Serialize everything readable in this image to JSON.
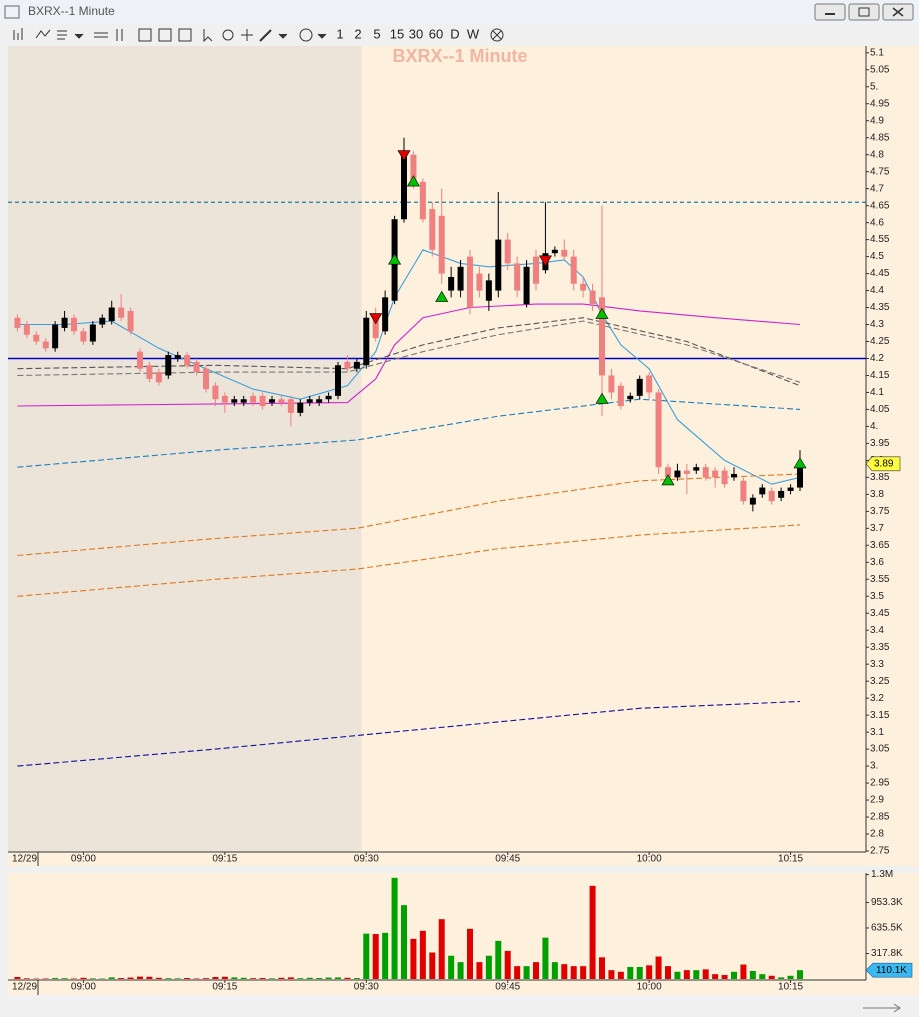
{
  "window": {
    "title": "BXRX--1 Minute"
  },
  "toolbar": {
    "intervals": [
      "1",
      "2",
      "5",
      "15",
      "30",
      "60",
      "D",
      "W"
    ]
  },
  "chart_data": {
    "type": "candlestick",
    "title": "BXRX--1 Minute",
    "date_label": "12/29",
    "xlim": [
      "08:52",
      "10:23"
    ],
    "xticks": [
      "09:00",
      "09:15",
      "09:30",
      "09:45",
      "10:00",
      "10:15"
    ],
    "session_start": "09:30",
    "ylim": [
      2.75,
      5.12
    ],
    "yticks": [
      5.1,
      5.05,
      {
        "value": 5,
        "label": "5."
      },
      4.95,
      4.9,
      4.85,
      4.8,
      4.75,
      4.7,
      4.65,
      4.6,
      4.55,
      4.5,
      4.45,
      4.4,
      4.35,
      4.3,
      4.25,
      4.2,
      4.15,
      4.1,
      4.05,
      {
        "value": 4,
        "label": "4."
      },
      3.95,
      3.9,
      3.85,
      3.8,
      3.75,
      3.7,
      3.65,
      3.6,
      3.55,
      3.5,
      3.45,
      3.4,
      3.35,
      3.3,
      3.25,
      3.2,
      3.15,
      3.1,
      3.05,
      {
        "value": 3,
        "label": "3."
      },
      2.95,
      2.9,
      2.85,
      2.8,
      2.75
    ],
    "up_color": "#000000",
    "down_color": "#f08080",
    "x": [
      "08:53",
      "08:54",
      "08:55",
      "08:56",
      "08:57",
      "08:58",
      "08:59",
      "09:00",
      "09:01",
      "09:02",
      "09:03",
      "09:04",
      "09:05",
      "09:06",
      "09:07",
      "09:08",
      "09:09",
      "09:10",
      "09:11",
      "09:12",
      "09:13",
      "09:14",
      "09:15",
      "09:16",
      "09:17",
      "09:18",
      "09:19",
      "09:20",
      "09:21",
      "09:22",
      "09:23",
      "09:24",
      "09:25",
      "09:26",
      "09:27",
      "09:28",
      "09:29",
      "09:30",
      "09:31",
      "09:32",
      "09:33",
      "09:34",
      "09:35",
      "09:36",
      "09:37",
      "09:38",
      "09:39",
      "09:40",
      "09:41",
      "09:42",
      "09:43",
      "09:44",
      "09:45",
      "09:46",
      "09:47",
      "09:48",
      "09:49",
      "09:50",
      "09:51",
      "09:52",
      "09:53",
      "09:54",
      "09:55",
      "09:56",
      "09:57",
      "09:58",
      "09:59",
      "10:00",
      "10:01",
      "10:02",
      "10:03",
      "10:04",
      "10:05",
      "10:06",
      "10:07",
      "10:08",
      "10:09",
      "10:10",
      "10:11",
      "10:12",
      "10:13",
      "10:14",
      "10:15",
      "10:16"
    ],
    "open": [
      4.32,
      4.3,
      4.27,
      4.25,
      4.23,
      4.29,
      4.32,
      4.28,
      4.25,
      4.3,
      4.31,
      4.35,
      4.34,
      4.22,
      4.18,
      4.16,
      4.15,
      4.2,
      4.21,
      4.19,
      4.17,
      4.12,
      4.09,
      4.07,
      4.07,
      4.09,
      4.09,
      4.07,
      4.08,
      4.08,
      4.04,
      4.07,
      4.07,
      4.08,
      4.09,
      4.19,
      4.17,
      4.18,
      4.33,
      4.28,
      4.37,
      4.61,
      4.8,
      4.72,
      4.64,
      4.62,
      4.4,
      4.4,
      4.5,
      4.45,
      4.37,
      4.4,
      4.55,
      4.48,
      4.36,
      4.5,
      4.46,
      4.51,
      4.52,
      4.5,
      4.42,
      4.4,
      4.38,
      4.15,
      4.12,
      4.08,
      4.09,
      4.15,
      4.1,
      3.88,
      3.85,
      3.87,
      3.87,
      3.88,
      3.87,
      3.87,
      3.85,
      3.84,
      3.77,
      3.8,
      3.81,
      3.79,
      3.81,
      3.82
    ],
    "high": [
      4.33,
      4.31,
      4.28,
      4.26,
      4.31,
      4.34,
      4.33,
      4.29,
      4.31,
      4.33,
      4.37,
      4.39,
      4.35,
      4.23,
      4.19,
      4.17,
      4.22,
      4.22,
      4.22,
      4.2,
      4.18,
      4.13,
      4.1,
      4.09,
      4.09,
      4.1,
      4.1,
      4.09,
      4.09,
      4.09,
      4.08,
      4.09,
      4.09,
      4.1,
      4.19,
      4.21,
      4.2,
      4.34,
      4.35,
      4.4,
      4.62,
      4.85,
      4.81,
      4.73,
      4.66,
      4.7,
      4.47,
      4.49,
      4.52,
      4.47,
      4.45,
      4.69,
      4.57,
      4.5,
      4.49,
      4.52,
      4.66,
      4.53,
      4.55,
      4.52,
      4.44,
      4.42,
      4.65,
      4.17,
      4.13,
      4.1,
      4.15,
      4.16,
      4.11,
      3.89,
      3.89,
      3.89,
      3.89,
      3.89,
      3.88,
      3.88,
      3.88,
      3.85,
      3.8,
      3.83,
      3.82,
      3.82,
      3.83,
      3.93
    ],
    "low": [
      4.28,
      4.26,
      4.24,
      4.22,
      4.22,
      4.28,
      4.27,
      4.24,
      4.24,
      4.29,
      4.3,
      4.31,
      4.27,
      4.16,
      4.13,
      4.12,
      4.14,
      4.19,
      4.17,
      4.15,
      4.1,
      4.06,
      4.04,
      4.06,
      4.06,
      4.06,
      4.05,
      4.06,
      4.06,
      4.0,
      4.03,
      4.06,
      4.06,
      4.07,
      4.08,
      4.16,
      4.16,
      4.17,
      4.25,
      4.27,
      4.36,
      4.6,
      4.7,
      4.6,
      4.5,
      4.42,
      4.38,
      4.38,
      4.33,
      4.38,
      4.34,
      4.38,
      4.46,
      4.38,
      4.35,
      4.4,
      4.45,
      4.5,
      4.49,
      4.4,
      4.38,
      4.34,
      4.03,
      4.08,
      4.05,
      4.07,
      4.08,
      4.08,
      3.86,
      3.83,
      3.84,
      3.8,
      3.86,
      3.84,
      3.82,
      3.82,
      3.84,
      3.77,
      3.75,
      3.79,
      3.77,
      3.78,
      3.8,
      3.81
    ],
    "close": [
      4.29,
      4.27,
      4.25,
      4.23,
      4.3,
      4.32,
      4.28,
      4.25,
      4.3,
      4.32,
      4.35,
      4.32,
      4.28,
      4.17,
      4.14,
      4.13,
      4.21,
      4.21,
      4.18,
      4.16,
      4.11,
      4.08,
      4.07,
      4.08,
      4.08,
      4.07,
      4.06,
      4.08,
      4.07,
      4.04,
      4.07,
      4.08,
      4.08,
      4.09,
      4.18,
      4.17,
      4.19,
      4.32,
      4.26,
      4.38,
      4.61,
      4.8,
      4.71,
      4.61,
      4.52,
      4.45,
      4.44,
      4.47,
      4.35,
      4.4,
      4.43,
      4.55,
      4.48,
      4.4,
      4.47,
      4.42,
      4.51,
      4.52,
      4.5,
      4.42,
      4.4,
      4.36,
      4.15,
      4.1,
      4.06,
      4.09,
      4.14,
      4.1,
      3.88,
      3.85,
      3.87,
      3.86,
      3.88,
      3.85,
      3.85,
      3.83,
      3.86,
      3.78,
      3.79,
      3.82,
      3.78,
      3.81,
      3.82,
      3.89
    ],
    "volume": [
      25000,
      8000,
      5000,
      6000,
      12000,
      10000,
      6000,
      15000,
      8000,
      6000,
      20000,
      12000,
      18000,
      30000,
      28000,
      15000,
      10000,
      8000,
      12000,
      6000,
      10000,
      25000,
      28000,
      20000,
      15000,
      10000,
      12000,
      8000,
      15000,
      20000,
      10000,
      15000,
      12000,
      18000,
      20000,
      15000,
      12000,
      565000,
      560000,
      575000,
      1260000,
      920000,
      500000,
      600000,
      330000,
      745000,
      290000,
      210000,
      625000,
      210000,
      290000,
      475000,
      350000,
      160000,
      160000,
      210000,
      515000,
      210000,
      185000,
      160000,
      160000,
      1160000,
      270000,
      110000,
      90000,
      150000,
      150000,
      170000,
      280000,
      160000,
      90000,
      110000,
      110000,
      120000,
      60000,
      50000,
      90000,
      180000,
      100000,
      60000,
      40000,
      20000,
      40000,
      110100
    ],
    "volume_up_color": "#00a000",
    "volume_down_color": "#e00000",
    "volume_ylim": [
      0,
      1320000
    ],
    "volume_yticks": [
      {
        "value": 1300000,
        "label": "1.3M"
      },
      {
        "value": 953300,
        "label": "953.3K"
      },
      {
        "value": 635500,
        "label": "635.5K"
      },
      {
        "value": 317800,
        "label": "317.8K"
      }
    ],
    "volume_last_label": "110.1K",
    "overlays": [
      {
        "color": "#3ca0dc",
        "dashed": false,
        "x": [
          "08:53",
          "08:58",
          "09:03",
          "09:08",
          "09:13",
          "09:18",
          "09:23",
          "09:28",
          "09:31",
          "09:33",
          "09:36",
          "09:40",
          "09:43",
          "09:48",
          "09:51",
          "09:53",
          "09:55",
          "09:57",
          "10:00",
          "10:03",
          "10:08",
          "10:13",
          "10:16"
        ],
        "values": [
          4.3,
          4.3,
          4.31,
          4.23,
          4.17,
          4.11,
          4.08,
          4.12,
          4.22,
          4.38,
          4.52,
          4.48,
          4.47,
          4.48,
          4.49,
          4.44,
          4.33,
          4.24,
          4.17,
          4.02,
          3.9,
          3.83,
          3.85
        ]
      },
      {
        "color": "#d020d0",
        "dashed": false,
        "x": [
          "08:53",
          "09:28",
          "09:31",
          "09:33",
          "09:36",
          "09:41",
          "09:48",
          "09:53",
          "09:59",
          "10:07",
          "10:16"
        ],
        "values": [
          4.06,
          4.07,
          4.14,
          4.24,
          4.32,
          4.35,
          4.36,
          4.36,
          4.34,
          4.32,
          4.3
        ]
      },
      {
        "color": "#555555",
        "dashed": true,
        "x": [
          "08:53",
          "09:14",
          "09:28",
          "09:36",
          "09:44",
          "09:53",
          "10:04",
          "10:16"
        ],
        "values": [
          4.17,
          4.18,
          4.17,
          4.24,
          4.29,
          4.32,
          4.25,
          4.12
        ]
      },
      {
        "color": "#777777",
        "dashed": true,
        "x": [
          "08:53",
          "09:14",
          "09:28",
          "09:36",
          "09:44",
          "09:53",
          "10:04",
          "10:16"
        ],
        "values": [
          4.15,
          4.16,
          4.16,
          4.22,
          4.27,
          4.31,
          4.24,
          4.13
        ]
      },
      {
        "color": "#1a7fbf",
        "dashed": true,
        "x": [
          "08:53",
          "09:14",
          "09:29",
          "09:44",
          "09:59",
          "10:16"
        ],
        "values": [
          3.88,
          3.93,
          3.96,
          4.03,
          4.08,
          4.05
        ]
      },
      {
        "color": "#e07820",
        "dashed": true,
        "x": [
          "08:53",
          "09:14",
          "09:29",
          "09:44",
          "09:59",
          "10:16"
        ],
        "values": [
          3.62,
          3.67,
          3.7,
          3.78,
          3.84,
          3.86
        ]
      },
      {
        "color": "#e07820",
        "dashed": true,
        "x": [
          "08:53",
          "09:14",
          "09:29",
          "09:44",
          "09:59",
          "10:16"
        ],
        "values": [
          3.5,
          3.55,
          3.58,
          3.64,
          3.68,
          3.71
        ]
      },
      {
        "color": "#1010a0",
        "dashed": true,
        "x": [
          "08:53",
          "09:14",
          "09:29",
          "09:44",
          "09:59",
          "10:16"
        ],
        "values": [
          3.0,
          3.05,
          3.09,
          3.13,
          3.17,
          3.19
        ]
      }
    ],
    "hlines": [
      {
        "value": 4.2,
        "color": "#0000cc",
        "dashed": false
      },
      {
        "value": 4.66,
        "color": "#1a7fa8",
        "dashed": true
      }
    ],
    "buy_signals": {
      "color": "#00c000",
      "x": [
        "09:33",
        "09:35",
        "09:38",
        "09:55",
        "09:55",
        "10:02",
        "10:16"
      ],
      "values": [
        4.49,
        4.72,
        4.38,
        4.33,
        4.08,
        3.84,
        3.89
      ]
    },
    "sell_signals": {
      "color": "#e00000",
      "x": [
        "09:31",
        "09:34",
        "09:49"
      ],
      "values": [
        4.32,
        4.8,
        4.49
      ]
    }
  }
}
